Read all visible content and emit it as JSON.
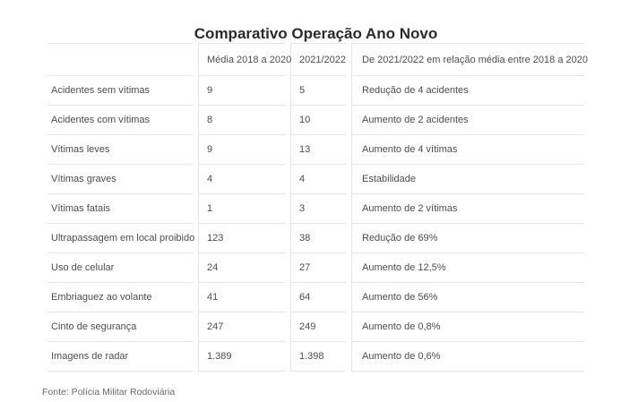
{
  "chart_data": {
    "type": "table",
    "title": "Comparativo Operação Ano Novo",
    "columns": [
      "",
      "Média 2018 a 2020",
      "2021/2022",
      "De 2021/2022 em relação média entre 2018 a 2020"
    ],
    "rows": [
      [
        "Acidentes sem vítimas",
        "9",
        "5",
        "Redução de 4 acidentes"
      ],
      [
        "Acidentes com vítimas",
        "8",
        "10",
        "Aumento de 2 acidentes"
      ],
      [
        "Vítimas leves",
        "9",
        "13",
        "Aumento de 4 vítimas"
      ],
      [
        "Vítimas graves",
        "4",
        "4",
        "Estabilidade"
      ],
      [
        "Vítimas fatais",
        "1",
        "3",
        "Aumento de 2 vítimas"
      ],
      [
        "Ultrapassagem em local proibido",
        "123",
        "38",
        "Redução de 69%"
      ],
      [
        "Uso de celular",
        "24",
        "27",
        "Aumento de 12,5%"
      ],
      [
        "Embriaguez ao volante",
        "41",
        "64",
        "Aumento de 56%"
      ],
      [
        "Cinto de segurança",
        "247",
        "249",
        "Aumento de 0,8%"
      ],
      [
        "Imagens de radar",
        "1.389",
        "1.398",
        "Aumento de 0,6%"
      ]
    ],
    "source": "Fonte: Polícia Militar Rodoviária",
    "layout": {
      "grid": "horizontal and vertical light separators, no outer side borders",
      "legend": "none"
    }
  },
  "colors": {
    "background": "#ffffff",
    "title_text": "#2b2b2b",
    "body_text": "#4d4d4d",
    "source_text": "#6b6b6b",
    "border": "#e6e6e6"
  }
}
